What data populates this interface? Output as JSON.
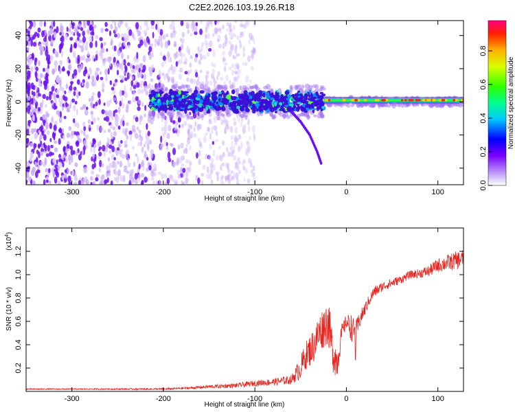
{
  "title": "C2E2.2026.103.19.26.R18",
  "colors": {
    "snr_line": "#e8241e",
    "axis": "#000000",
    "band_core": "#3a0fd6",
    "band_halo": "#a070f0"
  },
  "chart_data": [
    {
      "type": "heatmap",
      "name": "spectrogram",
      "xlabel": "Height of straight line (km)",
      "ylabel": "Frequency (Hz)",
      "xlim": [
        -350,
        128
      ],
      "ylim": [
        -50,
        49
      ],
      "x_ticks": [
        -300,
        -200,
        -100,
        0,
        100
      ],
      "y_ticks": [
        -40,
        -20,
        0,
        20,
        40
      ],
      "colorbar": {
        "label": "Normalized spectral amplitude",
        "range": [
          0.0,
          0.98
        ],
        "ticks": [
          0.0,
          0.2,
          0.4,
          0.6,
          0.8
        ],
        "tick_labels": [
          "0.0",
          "0.2",
          "0.4",
          "0.6",
          "0.8"
        ]
      },
      "features": {
        "noise_region_km": [
          -350,
          -160
        ],
        "carrier_band_start_km": -215,
        "carrier_center_hz": 0,
        "carrier_band_halfwidth_hz": 6,
        "narrow_tone_start_km": -25,
        "narrow_tone_offset_hz": 1,
        "drift_track": {
          "x": [
            -60,
            -50,
            -40,
            -32,
            -27
          ],
          "y": [
            -6,
            -12,
            -20,
            -30,
            -38
          ]
        }
      }
    },
    {
      "type": "line",
      "name": "snr",
      "xlabel": "Height of straight line (km)",
      "ylabel": "SNR (10 * v/v)",
      "scale_label": "(x10",
      "scale_exponent": "4",
      "scale_suffix": ")",
      "xlim": [
        -350,
        128
      ],
      "ylim": [
        0,
        1.4
      ],
      "x_ticks": [
        -300,
        -200,
        -100,
        0,
        100
      ],
      "y_ticks": [
        0.2,
        0.4,
        0.6,
        0.8,
        1.0,
        1.2
      ],
      "y_tick_labels": [
        "0.2",
        "0.4",
        "0.6",
        "0.8",
        "1.0",
        "1.2"
      ],
      "series": [
        {
          "name": "SNR",
          "x": [
            -350,
            -300,
            -250,
            -200,
            -170,
            -150,
            -120,
            -100,
            -80,
            -60,
            -50,
            -45,
            -40,
            -35,
            -30,
            -25,
            -20,
            -15,
            -10,
            -5,
            0,
            5,
            10,
            15,
            20,
            25,
            30,
            40,
            50,
            60,
            70,
            80,
            90,
            100,
            110,
            120,
            128
          ],
          "y": [
            0.02,
            0.02,
            0.02,
            0.02,
            0.03,
            0.04,
            0.05,
            0.07,
            0.08,
            0.1,
            0.2,
            0.3,
            0.35,
            0.4,
            0.5,
            0.55,
            0.6,
            0.35,
            0.25,
            0.5,
            0.6,
            0.55,
            0.5,
            0.62,
            0.7,
            0.78,
            0.85,
            0.9,
            0.93,
            0.96,
            1.0,
            1.01,
            1.03,
            1.08,
            1.1,
            1.12,
            1.14
          ],
          "noise_amplitude": [
            0.005,
            0.005,
            0.006,
            0.008,
            0.01,
            0.015,
            0.02,
            0.025,
            0.03,
            0.04,
            0.1,
            0.12,
            0.14,
            0.15,
            0.17,
            0.18,
            0.2,
            0.18,
            0.15,
            0.08,
            0.06,
            0.12,
            0.1,
            0.07,
            0.06,
            0.05,
            0.05,
            0.04,
            0.04,
            0.035,
            0.035,
            0.04,
            0.05,
            0.06,
            0.07,
            0.08,
            0.08
          ]
        }
      ],
      "spike": {
        "x": 10,
        "y": 0.27
      }
    }
  ]
}
